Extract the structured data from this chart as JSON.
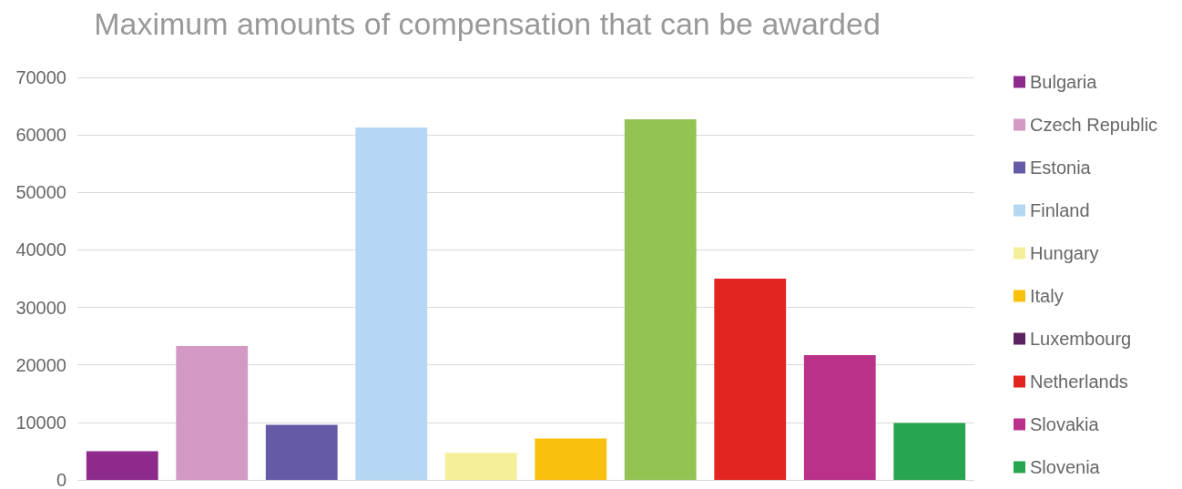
{
  "chart_data": {
    "type": "bar",
    "title": "Maximum amounts of compensation that can be awarded",
    "categories": [
      null,
      null,
      null,
      null,
      null,
      null,
      null,
      null,
      null,
      null
    ],
    "series": [
      {
        "name": "Bulgaria",
        "color": "#8e2a8c",
        "values": [
          5000,
          null,
          null,
          null,
          null,
          null,
          null,
          null,
          null,
          null
        ]
      },
      {
        "name": "Czech Republic",
        "color": "#d398c4",
        "values": [
          null,
          23300,
          null,
          null,
          null,
          null,
          null,
          null,
          null,
          null
        ]
      },
      {
        "name": "Estonia",
        "color": "#635ba6",
        "values": [
          null,
          null,
          9600,
          null,
          null,
          null,
          null,
          null,
          null,
          null
        ]
      },
      {
        "name": "Finland",
        "color": "#b5d7f3",
        "values": [
          null,
          null,
          null,
          61300,
          null,
          null,
          null,
          null,
          null,
          null
        ]
      },
      {
        "name": "Hungary",
        "color": "#f6ef9a",
        "values": [
          null,
          null,
          null,
          null,
          4700,
          null,
          null,
          null,
          null,
          null
        ]
      },
      {
        "name": "Italy",
        "color": "#f9c00e",
        "values": [
          null,
          null,
          null,
          null,
          null,
          7200,
          null,
          null,
          null,
          null
        ]
      },
      {
        "name": "Luxembourg",
        "color": "#5c2160",
        "values": [
          null,
          null,
          null,
          null,
          null,
          null,
          null,
          null,
          null,
          null
        ]
      },
      {
        "color": "#92c353",
        "values": [
          null,
          null,
          null,
          null,
          null,
          null,
          62700,
          null,
          null,
          null
        ]
      },
      {
        "name": "Netherlands",
        "color": "#e32521",
        "values": [
          null,
          null,
          null,
          null,
          null,
          null,
          null,
          35000,
          null,
          null
        ]
      },
      {
        "name": "Slovakia",
        "color": "#b93189",
        "values": [
          null,
          null,
          null,
          null,
          null,
          null,
          null,
          null,
          21700,
          null
        ]
      },
      {
        "name": "Slovenia",
        "color": "#27a550",
        "values": [
          null,
          null,
          null,
          null,
          null,
          null,
          null,
          null,
          null,
          9900
        ]
      }
    ],
    "ylim": [
      0,
      70000
    ],
    "yticks": [
      0,
      10000,
      20000,
      30000,
      40000,
      50000,
      60000,
      70000
    ],
    "grid": "y",
    "legend": "right"
  }
}
